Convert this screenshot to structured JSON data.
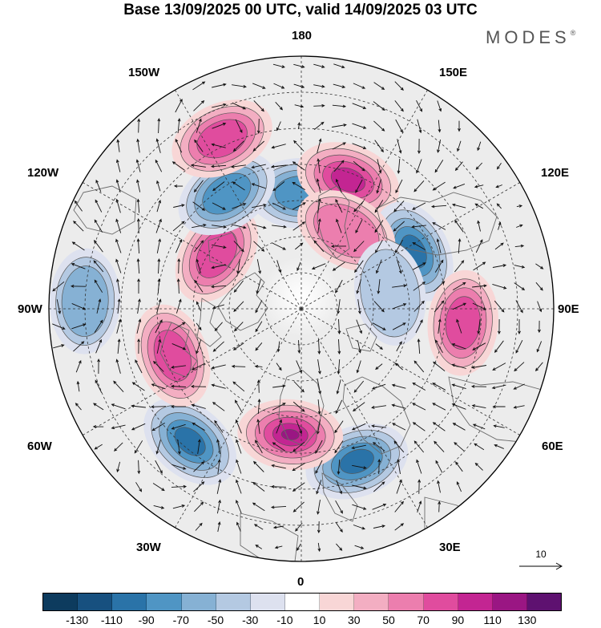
{
  "header": {
    "title": "Base 13/09/2025 00 UTC, valid 14/09/2025 03 UTC",
    "brand": "MODES",
    "brand_mark": "®"
  },
  "map": {
    "longitude_labels": {
      "top": "180",
      "bottom": "0",
      "left": "90W",
      "right": "90E",
      "nw_upper": "150W",
      "nw_lower": "120W",
      "sw_upper": "60W",
      "sw_lower": "30W",
      "ne_upper": "150E",
      "ne_lower": "120E",
      "se_upper": "60E",
      "se_lower": "30E"
    },
    "reference_vector": "10",
    "anomalies": [
      {
        "sign": "neg",
        "level": 3,
        "lon": 180,
        "lat": 58
      },
      {
        "sign": "pos",
        "level": 4,
        "lon": 160,
        "lat": 52
      },
      {
        "sign": "neg",
        "level": 4,
        "lon": 117,
        "lat": 55
      },
      {
        "sign": "pos",
        "level": 3,
        "lon": 85,
        "lat": 45
      },
      {
        "sign": "neg",
        "level": 4,
        "lon": 20,
        "lat": 45
      },
      {
        "sign": "pos",
        "level": 5,
        "lon": 355,
        "lat": 55
      },
      {
        "sign": "neg",
        "level": 4,
        "lon": 320,
        "lat": 42
      },
      {
        "sign": "pos",
        "level": 3,
        "lon": 290,
        "lat": 52
      },
      {
        "sign": "neg",
        "level": 2,
        "lon": 268,
        "lat": 30
      },
      {
        "sign": "pos",
        "level": 3,
        "lon": 237,
        "lat": 62
      },
      {
        "sign": "neg",
        "level": 3,
        "lon": 213,
        "lat": 52
      },
      {
        "sign": "pos",
        "level": 3,
        "lon": 205,
        "lat": 38
      },
      {
        "sign": "pos",
        "level": 2,
        "lon": 150,
        "lat": 65
      },
      {
        "sign": "neg",
        "level": 1,
        "lon": 100,
        "lat": 65
      }
    ]
  },
  "colorbar": {
    "colors": [
      "#0d3b5e",
      "#17507f",
      "#2a73a8",
      "#4f95c4",
      "#86b1d4",
      "#b4c9e2",
      "#dde1ef",
      "#ffffff",
      "#f8d6d6",
      "#f3aec2",
      "#ec7eae",
      "#e04c9e",
      "#c32592",
      "#9a1683",
      "#5e1170"
    ],
    "ticks": [
      "-130",
      "-110",
      "-90",
      "-70",
      "-50",
      "-30",
      "-10",
      "10",
      "30",
      "50",
      "70",
      "90",
      "110",
      "130"
    ]
  }
}
